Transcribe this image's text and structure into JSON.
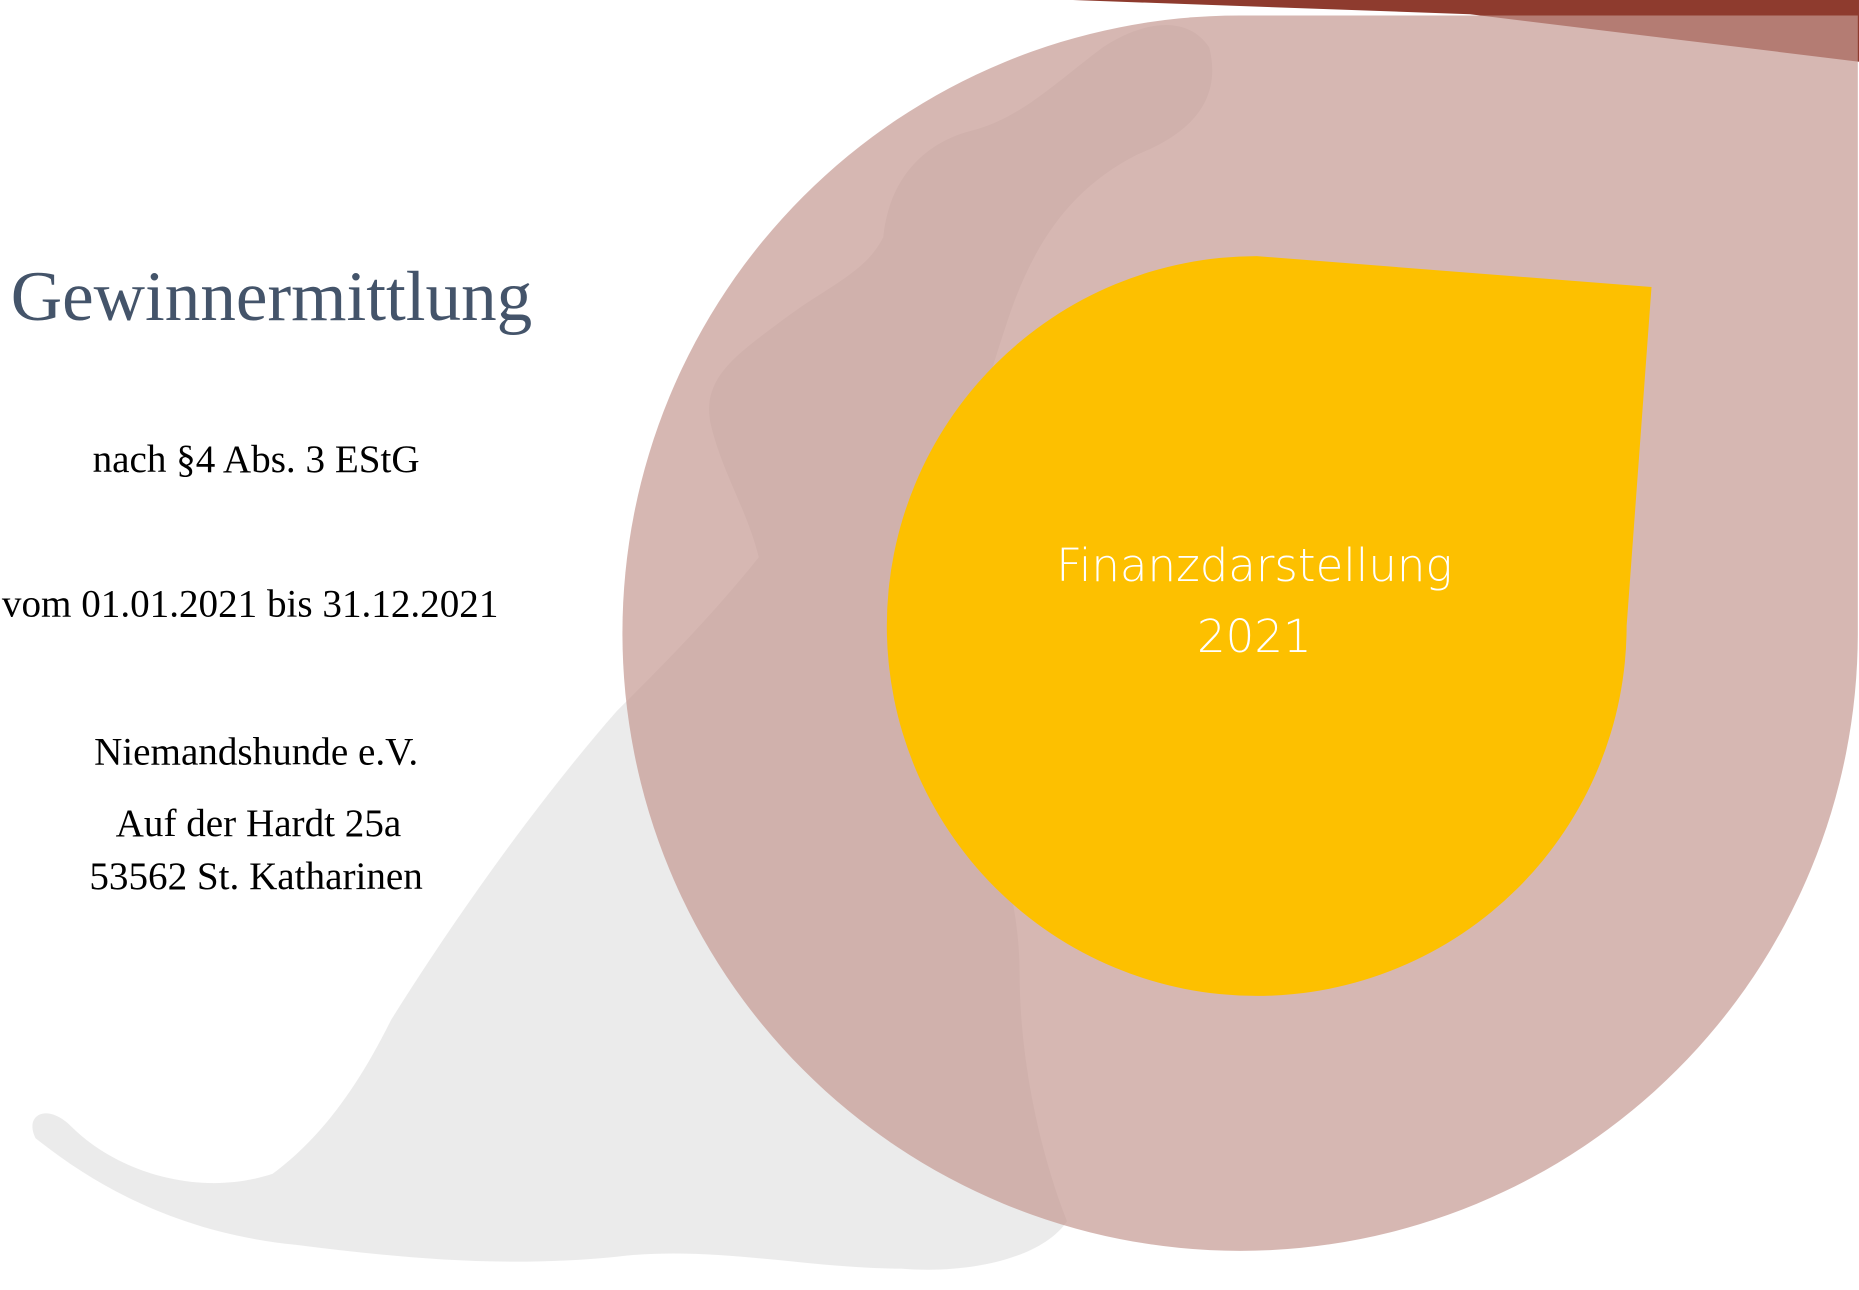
{
  "title": "Gewinnermittlung",
  "subtitle": "nach §4 Abs. 3 EStG",
  "period": "vom 01.01.2021 bis 31.12.2021",
  "organization": {
    "name": "Niemandshunde e.V.",
    "street": "Auf der Hardt 25a",
    "city": "53562 St. Katharinen"
  },
  "badge": {
    "line1": "Finanzdarstellung",
    "line2": "2021"
  }
}
